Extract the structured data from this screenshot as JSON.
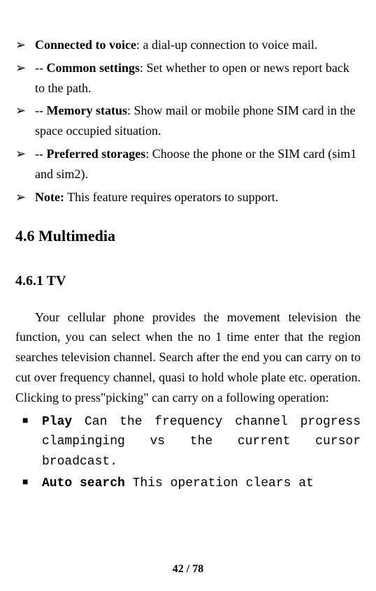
{
  "bullets": [
    {
      "bold": "Connected to voice",
      "rest": ": a dial-up connection to voice mail."
    },
    {
      "prefix": "-- ",
      "bold": "Common settings",
      "rest": ": Set whether to open or news report back to the path."
    },
    {
      "prefix": "-- ",
      "bold": "Memory status",
      "rest": ": Show mail or mobile phone SIM card in the space occupied situation."
    },
    {
      "prefix": "-- ",
      "bold": "Preferred storages",
      "rest": ": Choose the phone or the SIM card (sim1 and sim2)."
    },
    {
      "bold": "Note:",
      "rest": " This feature requires operators to support."
    }
  ],
  "marker_arrow": "➢",
  "h2": "4.6 Multimedia",
  "h3": "4.6.1 TV",
  "paragraph": "Your cellular phone provides the movement television the function, you can select when the no 1 time enter that the region searches television channel. Search after the end you can carry on to cut over frequency channel, quasi to hold whole plate etc. operation. Clicking to press\"picking\" can carry on a following operation:",
  "squares": [
    {
      "bold": "Play",
      "rest": "  Can the frequency channel progress clampinging vs the current cursor broadcast."
    },
    {
      "bold": "Auto search",
      "rest": "  This operation clears at"
    }
  ],
  "marker_square": "■",
  "page": "42 / 78"
}
